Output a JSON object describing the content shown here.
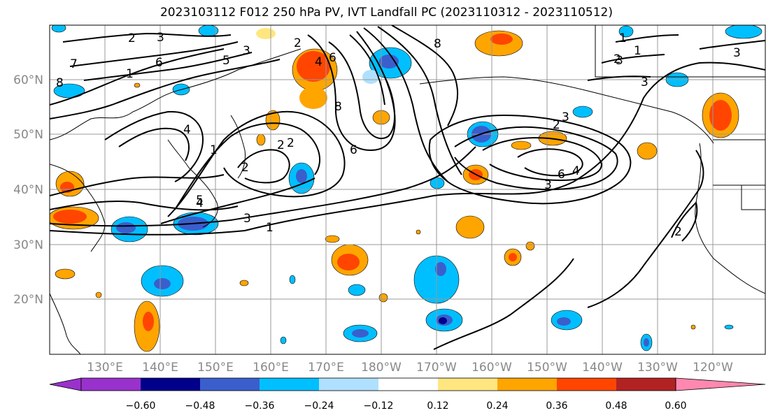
{
  "title": "2023103112 F012 250 hPa PV, IVT Landfall PC (2023110312 - 2023110512)",
  "lat_labels": [
    "60°N",
    "50°N",
    "40°N",
    "30°N",
    "20°N"
  ],
  "lon_labels": [
    "130°E",
    "140°E",
    "150°E",
    "160°E",
    "170°E",
    "180°W",
    "170°W",
    "160°W",
    "150°W",
    "140°W",
    "130°W",
    "120°W"
  ],
  "colorbar": {
    "ticks": [
      "−0.60",
      "−0.48",
      "−0.36",
      "−0.24",
      "−0.12",
      "0.12",
      "0.24",
      "0.36",
      "0.48",
      "0.60"
    ],
    "colors": [
      "#9932cc",
      "#00008b",
      "#3a5fcd",
      "#00bfff",
      "#b0e0ff",
      "#ffffff",
      "#ffe680",
      "#ffa500",
      "#ff4500",
      "#b22222",
      "#ff88b0"
    ]
  },
  "contour_labels": [
    "2",
    "3",
    "7",
    "6",
    "5",
    "8",
    "1",
    "3",
    "2",
    "4",
    "6",
    "8",
    "6",
    "4",
    "2",
    "2",
    "1",
    "2",
    "5",
    "4",
    "3",
    "1",
    "3",
    "2",
    "3",
    "1",
    "3",
    "1",
    "2",
    "3",
    "8",
    "6",
    "4",
    "3",
    "2"
  ],
  "colors": {
    "neg_dark": "#00008b",
    "neg_mid": "#3a5fcd",
    "neg_light": "#00bfff",
    "neg_pale": "#b0e0ff",
    "pos_pale": "#ffe680",
    "pos_mid": "#ffa500",
    "pos_strong": "#ff4500"
  }
}
